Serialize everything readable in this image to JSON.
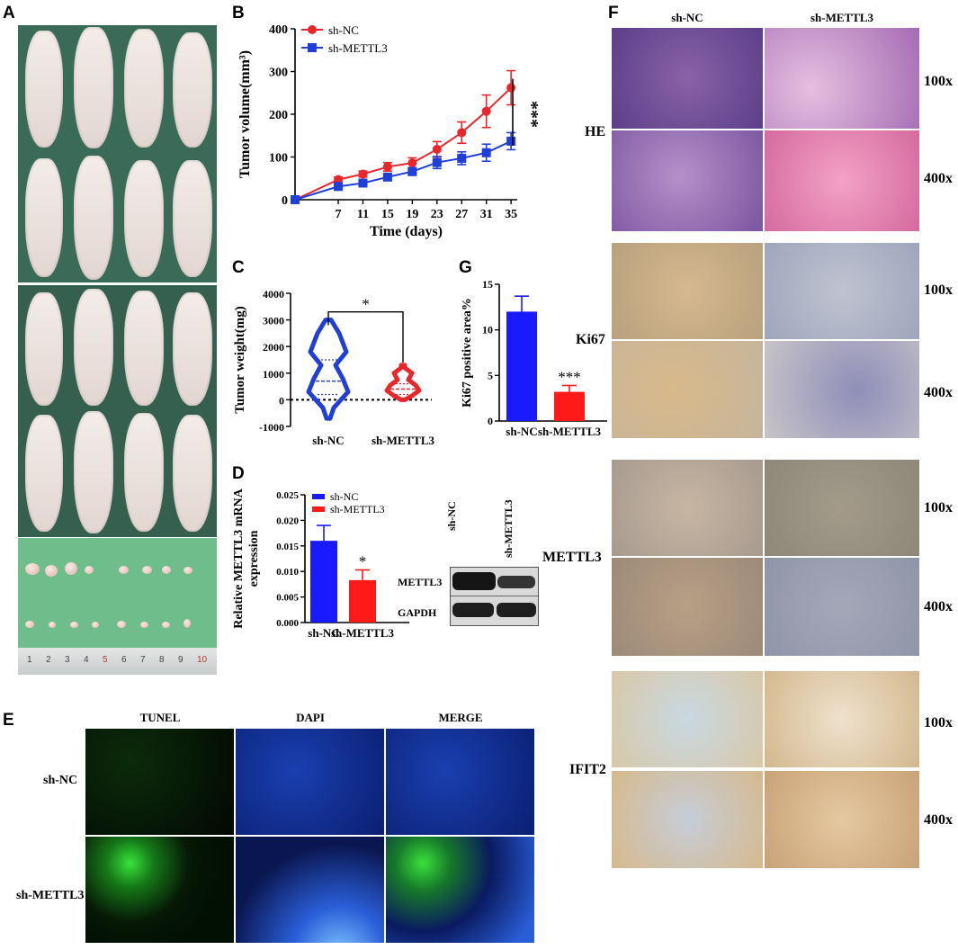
{
  "panels": {
    "a": "A",
    "b": "B",
    "c": "C",
    "d": "D",
    "e": "E",
    "f": "F",
    "g": "G"
  },
  "ruler_ticks": [
    "1",
    "2",
    "3",
    "4",
    "5",
    "6",
    "7",
    "8",
    "9",
    "10",
    "1"
  ],
  "chart_data": [
    {
      "id": "B",
      "type": "line",
      "ylabel": "Tumor volume(mm³)",
      "xlabel": "Time (days)",
      "x": [
        0,
        7,
        11,
        15,
        19,
        23,
        27,
        31,
        35
      ],
      "xticklabels": [
        "7",
        "11",
        "15",
        "19",
        "23",
        "27",
        "31",
        "35"
      ],
      "ylim": [
        0,
        400
      ],
      "yticks": [
        "0",
        "100",
        "200",
        "300",
        "400"
      ],
      "legend": [
        "sh-NC",
        "sh-METTL3"
      ],
      "series": [
        {
          "name": "sh-NC",
          "color": "#e8262c",
          "values": [
            0,
            47,
            60,
            77,
            86,
            118,
            157,
            207,
            262
          ],
          "err": [
            0,
            6,
            7,
            10,
            12,
            18,
            25,
            38,
            40
          ]
        },
        {
          "name": "sh-METTL3",
          "color": "#1f3fd8",
          "values": [
            0,
            31,
            39,
            53,
            66,
            87,
            97,
            110,
            137
          ],
          "err": [
            0,
            5,
            6,
            8,
            9,
            14,
            15,
            20,
            20
          ]
        }
      ],
      "significance": "***"
    },
    {
      "id": "C",
      "type": "violin",
      "ylabel": "Tumor weight(mg)",
      "categories": [
        "sh-NC",
        "sh-METTL3"
      ],
      "colors": [
        "#1f3fd8",
        "#e8262c"
      ],
      "ylim": [
        -1000,
        4000
      ],
      "yticks": [
        "-1000",
        "0",
        "1000",
        "2000",
        "3000",
        "4000"
      ],
      "median": [
        700,
        400
      ],
      "quartiles": [
        [
          200,
          1500
        ],
        [
          200,
          600
        ]
      ],
      "range": [
        [
          -700,
          3000
        ],
        [
          0,
          1300
        ]
      ],
      "significance": "*"
    },
    {
      "id": "G",
      "type": "bar",
      "ylabel": "Ki67 positive area%",
      "categories": [
        "sh-NC",
        "sh-METTL3"
      ],
      "colors": [
        "#1a1aff",
        "#ff1a1a"
      ],
      "values": [
        12.0,
        3.2
      ],
      "err": [
        1.7,
        0.7
      ],
      "ylim": [
        0,
        15
      ],
      "yticks": [
        "0",
        "5",
        "10",
        "15"
      ],
      "significance": "***"
    },
    {
      "id": "D",
      "type": "bar",
      "ylabel": "Relative METTL3 mRNA expression",
      "categories": [
        "sh-NC",
        "sh-METTL3"
      ],
      "colors": [
        "#1a1aff",
        "#ff1a1a"
      ],
      "values": [
        0.016,
        0.0083
      ],
      "err": [
        0.003,
        0.002
      ],
      "ylim": [
        0,
        0.025
      ],
      "yticks": [
        "0.000",
        "0.005",
        "0.010",
        "0.015",
        "0.020",
        "0.025"
      ],
      "legend": [
        "sh-NC",
        "sh-METTL3"
      ],
      "significance": "*"
    }
  ],
  "western_blot": {
    "lanes": [
      "sh-NC",
      "sh-METTL3"
    ],
    "bands": [
      "METTL3",
      "GAPDH"
    ]
  },
  "panel_e": {
    "columns": [
      "TUNEL",
      "DAPI",
      "MERGE"
    ],
    "rows": [
      "sh-NC",
      "sh-METTL3"
    ]
  },
  "panel_f": {
    "columns": [
      "sh-NC",
      "sh-METTL3"
    ],
    "rows": [
      "HE",
      "Ki67",
      "METTL3",
      "IFIT2"
    ],
    "magnifications": [
      "100x",
      "400x"
    ]
  }
}
